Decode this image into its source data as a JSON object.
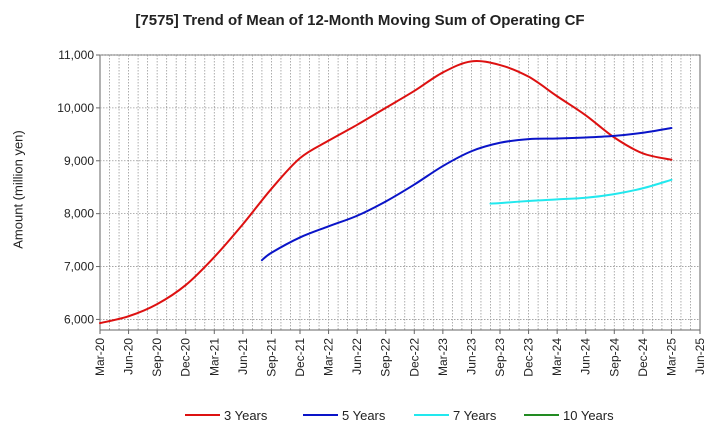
{
  "chart_data": {
    "type": "line",
    "title": "[7575]  Trend of Mean of 12-Month Moving Sum of Operating CF",
    "xlabel": "",
    "ylabel": "Amount (million yen)",
    "ylim": [
      5800,
      11000
    ],
    "yticks": [
      6000,
      7000,
      8000,
      9000,
      10000,
      11000
    ],
    "ytick_labels": [
      "6,000",
      "7,000",
      "8,000",
      "9,000",
      "10,000",
      "11,000"
    ],
    "x_start": "2020-03",
    "x_end": "2025-06",
    "xtick_labels": [
      "Mar-20",
      "Jun-20",
      "Sep-20",
      "Dec-20",
      "Mar-21",
      "Jun-21",
      "Sep-21",
      "Dec-21",
      "Mar-22",
      "Jun-22",
      "Sep-22",
      "Dec-22",
      "Mar-23",
      "Jun-23",
      "Sep-23",
      "Dec-23",
      "Mar-24",
      "Jun-24",
      "Sep-24",
      "Dec-24",
      "Mar-25",
      "Jun-25"
    ],
    "grid": true,
    "legend_position": "bottom",
    "series": [
      {
        "name": "3 Years",
        "color": "#dd1111",
        "x": [
          "Mar-20",
          "Jun-20",
          "Sep-20",
          "Dec-20",
          "Mar-21",
          "Jun-21",
          "Sep-21",
          "Dec-21",
          "Mar-22",
          "Jun-22",
          "Sep-22",
          "Dec-22",
          "Mar-23",
          "Jun-23",
          "Sep-23",
          "Dec-23",
          "Mar-24",
          "Jun-24",
          "Sep-24",
          "Dec-24",
          "Mar-25"
        ],
        "values": [
          5930,
          6060,
          6290,
          6650,
          7180,
          7800,
          8470,
          9050,
          9380,
          9680,
          10000,
          10320,
          10670,
          10880,
          10810,
          10590,
          10220,
          9860,
          9440,
          9140,
          9020
        ]
      },
      {
        "name": "5 Years",
        "color": "#0a14c8",
        "x": [
          "Aug-21",
          "Sep-21",
          "Dec-21",
          "Mar-22",
          "Jun-22",
          "Sep-22",
          "Dec-22",
          "Mar-23",
          "Jun-23",
          "Sep-23",
          "Dec-23",
          "Mar-24",
          "Jun-24",
          "Sep-24",
          "Dec-24",
          "Mar-25"
        ],
        "values": [
          7120,
          7260,
          7550,
          7760,
          7960,
          8230,
          8550,
          8900,
          9180,
          9340,
          9410,
          9420,
          9440,
          9470,
          9530,
          9620
        ]
      },
      {
        "name": "7 Years",
        "color": "#22e8ee",
        "x": [
          "Aug-23",
          "Sep-23",
          "Dec-23",
          "Mar-24",
          "Jun-24",
          "Sep-24",
          "Dec-24",
          "Mar-25"
        ],
        "values": [
          8190,
          8200,
          8240,
          8270,
          8300,
          8370,
          8480,
          8640
        ]
      },
      {
        "name": "10 Years",
        "color": "#228b22",
        "x": [],
        "values": []
      }
    ]
  }
}
